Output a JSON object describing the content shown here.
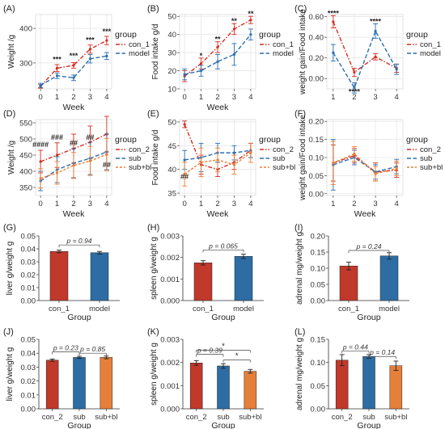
{
  "colors": {
    "red": "#d62d20",
    "blue": "#2a6eb0",
    "orange": "#ee7d33",
    "gray": "#9a9a9a",
    "grid": "#e6e6e6",
    "barRed": "#c0392b",
    "barBlue": "#2d6da3",
    "barOrange": "#e5803a"
  },
  "chart_data": [
    {
      "panel": "(A)",
      "type": "line",
      "xlabel": "Week",
      "ylabel": "Weight /g",
      "x": [
        0,
        1,
        2,
        3,
        4
      ],
      "ylim": [
        225,
        440
      ],
      "yticks": [
        300,
        400
      ],
      "legend": {
        "title": "group",
        "position": "right"
      },
      "series": [
        {
          "name": "con_1",
          "color": "red",
          "values": [
            232,
            285,
            293,
            340,
            365
          ],
          "err": [
            5,
            10,
            8,
            12,
            12
          ]
        },
        {
          "name": "model",
          "color": "blue",
          "values": [
            235,
            263,
            257,
            312,
            320
          ],
          "err": [
            6,
            8,
            8,
            12,
            10
          ]
        }
      ],
      "annotations": [
        {
          "x": 1,
          "y": 303,
          "text": "***"
        },
        {
          "x": 2,
          "y": 314,
          "text": "***"
        },
        {
          "x": 3,
          "y": 359,
          "text": "***"
        },
        {
          "x": 4,
          "y": 384,
          "text": "***"
        }
      ]
    },
    {
      "panel": "(B)",
      "type": "line",
      "xlabel": "Week",
      "ylabel": "Food intake g/d",
      "x": [
        0,
        1,
        2,
        3,
        4
      ],
      "ylim": [
        10,
        51
      ],
      "yticks": [
        10,
        20,
        30,
        40,
        50
      ],
      "legend": {
        "title": "group",
        "position": "right"
      },
      "series": [
        {
          "name": "con_1",
          "color": "red",
          "values": [
            17,
            24,
            33,
            43,
            48
          ],
          "err": [
            3,
            3,
            3,
            3,
            2
          ]
        },
        {
          "name": "model",
          "color": "blue",
          "values": [
            18,
            20,
            25,
            29,
            40
          ],
          "err": [
            3,
            3,
            4,
            6,
            3
          ]
        }
      ],
      "annotations": [
        {
          "x": 1,
          "y": 27,
          "text": "*"
        },
        {
          "x": 2,
          "y": 36,
          "text": "**"
        },
        {
          "x": 3,
          "y": 46,
          "text": "**"
        },
        {
          "x": 4,
          "y": 50,
          "text": "**"
        }
      ]
    },
    {
      "panel": "(C)",
      "type": "line",
      "xlabel": "",
      "ylabel": "weight gain/Food intake",
      "x": [
        1,
        2,
        3,
        4
      ],
      "ylim": [
        -0.1,
        0.62
      ],
      "yticks": [
        0.0,
        0.2,
        0.4,
        0.6
      ],
      "ytick_labels": [
        "0.00",
        "0.20",
        "0.40",
        "0.60"
      ],
      "legend": {
        "title": "group",
        "position": "right"
      },
      "series": [
        {
          "name": "con_1",
          "color": "red",
          "values": [
            0.55,
            0.06,
            0.21,
            0.1
          ],
          "err": [
            0.06,
            0.04,
            0.03,
            0.04
          ]
        },
        {
          "name": "model",
          "color": "blue",
          "values": [
            0.25,
            -0.09,
            0.46,
            0.09
          ],
          "err": [
            0.08,
            0.05,
            0.07,
            0.05
          ]
        }
      ],
      "annotations": [
        {
          "x": 1,
          "y": 0.61,
          "text": "****"
        },
        {
          "x": 2,
          "y": -0.15,
          "text": "****"
        },
        {
          "x": 3,
          "y": 0.53,
          "text": "****"
        }
      ]
    },
    {
      "panel": "(D)",
      "type": "line",
      "xlabel": "Week",
      "ylabel": "Weight /g",
      "x": [
        0,
        1,
        2,
        3,
        4
      ],
      "ylim": [
        325,
        560
      ],
      "yticks": [
        350,
        400,
        450,
        500,
        550
      ],
      "legend": {
        "title": "group",
        "position": "right"
      },
      "series": [
        {
          "name": "con_2",
          "color": "red",
          "values": [
            430,
            450,
            470,
            490,
            515
          ],
          "err": [
            35,
            38,
            45,
            50,
            55
          ]
        },
        {
          "name": "sub",
          "color": "blue",
          "values": [
            370,
            405,
            425,
            440,
            460
          ],
          "err": [
            30,
            40,
            45,
            50,
            55
          ]
        },
        {
          "name": "sub+bl",
          "color": "orange",
          "values": [
            378,
            395,
            418,
            432,
            452
          ],
          "err": [
            30,
            35,
            40,
            45,
            50
          ]
        }
      ],
      "annotations": [
        {
          "x": 0,
          "y": 475,
          "text": "####"
        },
        {
          "x": 1,
          "y": 497,
          "text": "###"
        },
        {
          "x": 2,
          "y": 480,
          "text": "##"
        },
        {
          "x": 3,
          "y": 497,
          "text": "##"
        },
        {
          "x": 4,
          "y": 412,
          "text": "##"
        }
      ]
    },
    {
      "panel": "(E)",
      "type": "line",
      "xlabel": "Week",
      "ylabel": "Food intake g/d",
      "x": [
        0,
        1,
        2,
        3,
        4
      ],
      "ylim": [
        34.5,
        50.5
      ],
      "yticks": [
        35,
        40,
        45,
        50
      ],
      "legend": {
        "title": "group",
        "position": "right"
      },
      "series": [
        {
          "name": "con_2",
          "color": "red",
          "values": [
            49.5,
            41,
            40,
            41.5,
            44
          ],
          "err": [
            0.7,
            2,
            1.5,
            1.5,
            1.5
          ]
        },
        {
          "name": "sub",
          "color": "blue",
          "values": [
            42,
            42.5,
            43.5,
            43.5,
            44
          ],
          "err": [
            2,
            3,
            2,
            1.5,
            1.5
          ]
        },
        {
          "name": "sub+bl",
          "color": "orange",
          "values": [
            39,
            41.5,
            42,
            41,
            43.5
          ],
          "err": [
            2.5,
            3,
            2.5,
            2,
            2
          ]
        }
      ],
      "annotations": [
        {
          "x": 0,
          "y": 38,
          "text": "##"
        }
      ]
    },
    {
      "panel": "(F)",
      "type": "line",
      "xlabel": "Week",
      "ylabel": "weight gain/Food intake",
      "x": [
        1,
        2,
        3,
        4
      ],
      "ylim": [
        -0.005,
        0.205
      ],
      "yticks": [
        0.0,
        0.05,
        0.1,
        0.15,
        0.2
      ],
      "ytick_labels": [
        "0.00",
        "0.05",
        "0.10",
        "0.15",
        "0.20"
      ],
      "legend": {
        "title": "group",
        "position": "right"
      },
      "series": [
        {
          "name": "con_2",
          "color": "red",
          "values": [
            0.085,
            0.105,
            0.06,
            0.065
          ],
          "err": [
            0.05,
            0.02,
            0.025,
            0.02
          ]
        },
        {
          "name": "sub",
          "color": "blue",
          "values": [
            0.08,
            0.1,
            0.06,
            0.075
          ],
          "err": [
            0.07,
            0.02,
            0.02,
            0.02
          ]
        },
        {
          "name": "sub+bl",
          "color": "orange",
          "values": [
            0.085,
            0.11,
            0.055,
            0.07
          ],
          "err": [
            0.06,
            0.02,
            0.02,
            0.02
          ]
        }
      ],
      "annotations": []
    },
    {
      "panel": "(G)",
      "type": "bar",
      "xlabel": "Group",
      "ylabel": "liver g/weight g",
      "categories": [
        "con_1",
        "model"
      ],
      "values": [
        0.038,
        0.037
      ],
      "err": [
        0.001,
        0.001
      ],
      "colors": [
        "barRed",
        "barBlue"
      ],
      "ylim": [
        0,
        0.05
      ],
      "yticks": [
        0,
        0.01,
        0.02,
        0.03,
        0.04,
        0.05
      ],
      "ytick_labels": [
        "0.00",
        "0.01",
        "0.02",
        "0.03",
        "0.04",
        "0.05"
      ],
      "brackets": [
        {
          "from": 0,
          "to": 1,
          "y": 0.043,
          "text": "p = 0.94"
        }
      ]
    },
    {
      "panel": "(H)",
      "type": "bar",
      "xlabel": "Group",
      "ylabel": "spleen g/weight g",
      "categories": [
        "con_1",
        "model"
      ],
      "values": [
        0.00175,
        0.00205
      ],
      "err": [
        0.0001,
        0.0001
      ],
      "colors": [
        "barRed",
        "barBlue"
      ],
      "ylim": [
        0,
        0.003
      ],
      "yticks": [
        0,
        0.001,
        0.002,
        0.003
      ],
      "ytick_labels": [
        "0.000",
        "0.001",
        "0.002",
        "0.003"
      ],
      "brackets": [
        {
          "from": 0,
          "to": 1,
          "y": 0.00235,
          "text": "p = 0.065"
        }
      ]
    },
    {
      "panel": "(I)",
      "type": "bar",
      "xlabel": "Group",
      "ylabel": "adrenal mg/weight g",
      "categories": [
        "con_1",
        "model"
      ],
      "values": [
        0.107,
        0.138
      ],
      "err": [
        0.012,
        0.01
      ],
      "colors": [
        "barRed",
        "barBlue"
      ],
      "ylim": [
        0,
        0.2
      ],
      "yticks": [
        0,
        0.05,
        0.1,
        0.15,
        0.2
      ],
      "ytick_labels": [
        "0.00",
        "0.05",
        "0.10",
        "0.15",
        "0.20"
      ],
      "brackets": [
        {
          "from": 0,
          "to": 1,
          "y": 0.155,
          "text": "p = 0.24"
        }
      ]
    },
    {
      "panel": "(J)",
      "type": "bar",
      "xlabel": "Group",
      "ylabel": "liver g/weight g",
      "categories": [
        "con_2",
        "sub",
        "sub+bl"
      ],
      "values": [
        0.035,
        0.037,
        0.037
      ],
      "err": [
        0.0008,
        0.0008,
        0.001
      ],
      "colors": [
        "barRed",
        "barBlue",
        "barOrange"
      ],
      "ylim": [
        0,
        0.05
      ],
      "yticks": [
        0,
        0.01,
        0.02,
        0.03,
        0.04,
        0.05
      ],
      "ytick_labels": [
        "0.00",
        "0.01",
        "0.02",
        "0.03",
        "0.04",
        "0.05"
      ],
      "brackets": [
        {
          "from": 0,
          "to": 1,
          "y": 0.041,
          "text": "p = 0.23"
        },
        {
          "from": 1,
          "to": 2,
          "y": 0.04,
          "text": "p = 0.85"
        }
      ]
    },
    {
      "panel": "(K)",
      "type": "bar",
      "xlabel": "Group",
      "ylabel": "spleen g/weight g",
      "categories": [
        "con_2",
        "sub",
        "sub+bl"
      ],
      "values": [
        0.00198,
        0.00185,
        0.00162
      ],
      "err": [
        0.0001,
        0.0001,
        8e-05
      ],
      "colors": [
        "barRed",
        "barBlue",
        "barOrange"
      ],
      "ylim": [
        0,
        0.003
      ],
      "yticks": [
        0,
        0.001,
        0.002,
        0.003
      ],
      "ytick_labels": [
        "0.000",
        "0.001",
        "0.002",
        "0.003"
      ],
      "brackets": [
        {
          "from": 0,
          "to": 1,
          "y": 0.00235,
          "text": "p = 0.39"
        },
        {
          "from": 0,
          "to": 2,
          "y": 0.00253,
          "text": "*"
        },
        {
          "from": 1,
          "to": 2,
          "y": 0.00211,
          "text": "*"
        }
      ]
    },
    {
      "panel": "(L)",
      "type": "bar",
      "xlabel": "Group",
      "ylabel": "adrenal mg/weight g",
      "categories": [
        "con_2",
        "sub",
        "sub+bl"
      ],
      "values": [
        0.105,
        0.113,
        0.093
      ],
      "err": [
        0.012,
        0.004,
        0.01
      ],
      "colors": [
        "barRed",
        "barBlue",
        "barOrange"
      ],
      "ylim": [
        0,
        0.15
      ],
      "yticks": [
        0,
        0.05,
        0.1,
        0.15
      ],
      "ytick_labels": [
        "0.00",
        "0.05",
        "0.10",
        "0.15"
      ],
      "brackets": [
        {
          "from": 0,
          "to": 1,
          "y": 0.125,
          "text": "p = 0.44"
        },
        {
          "from": 1,
          "to": 2,
          "y": 0.113,
          "text": "p = 0.14"
        }
      ]
    }
  ]
}
